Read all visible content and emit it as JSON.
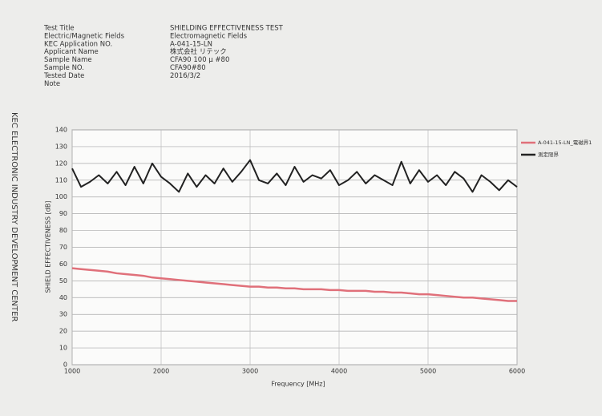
{
  "header": {
    "rows": [
      {
        "label": "Test Title",
        "value": "SHIELDING EFFECTIVENESS TEST"
      },
      {
        "label": "Electric/Magnetic Fields",
        "value": "Electromagnetic Fields"
      },
      {
        "label": "KEC Application NO.",
        "value": "A-041-15-LN"
      },
      {
        "label": "Applicant Name",
        "value": "株式会社 リテック"
      },
      {
        "label": "Sample Name",
        "value": "CFA90 100 μ #80"
      },
      {
        "label": "Sample NO.",
        "value": "CFA90#80"
      },
      {
        "label": "Tested Date",
        "value": "2016/3/2"
      },
      {
        "label": "Note"
      }
    ]
  },
  "side_text": "KEC ELECTRONIC INDUSTRY DEVELOPMENT CENTER",
  "chart_data": {
    "type": "line",
    "x_label": "Frequency [MHz]",
    "y_label": "SHIELD EFFECTIVENESS [dB]",
    "x": [
      1000,
      1100,
      1200,
      1300,
      1400,
      1500,
      1600,
      1700,
      1800,
      1900,
      2000,
      2100,
      2200,
      2300,
      2400,
      2500,
      2600,
      2700,
      2800,
      2900,
      3000,
      3100,
      3200,
      3300,
      3400,
      3500,
      3600,
      3700,
      3800,
      3900,
      4000,
      4100,
      4200,
      4300,
      4400,
      4500,
      4600,
      4700,
      4800,
      4900,
      5000,
      5100,
      5200,
      5300,
      5400,
      5500,
      5600,
      5700,
      5800,
      5900,
      6000
    ],
    "series": [
      {
        "name": "A-041-15-LN_電磁界1",
        "color": "#e0707a",
        "values": [
          57.5,
          57,
          56.5,
          56,
          55.5,
          54.5,
          54,
          53.5,
          53,
          52,
          51.5,
          51,
          50.5,
          50,
          49.5,
          49,
          48.5,
          48,
          47.5,
          47,
          46.5,
          46.5,
          46,
          46,
          45.5,
          45.5,
          45,
          45,
          45,
          44.5,
          44.5,
          44,
          44,
          44,
          43.5,
          43.5,
          43,
          43,
          42.5,
          42,
          42,
          41.5,
          41,
          40.5,
          40,
          40,
          39.5,
          39,
          38.5,
          38,
          38
        ]
      },
      {
        "name": "測定限界",
        "color": "#222222",
        "values": [
          117,
          106,
          109,
          113,
          108,
          115,
          107,
          118,
          108,
          120,
          112,
          108,
          103,
          114,
          106,
          113,
          108,
          117,
          109,
          115,
          122,
          110,
          108,
          114,
          107,
          118,
          109,
          113,
          111,
          116,
          107,
          110,
          115,
          108,
          113,
          110,
          107,
          121,
          108,
          116,
          109,
          113,
          107,
          115,
          111,
          103,
          113,
          109,
          104,
          110,
          106
        ]
      }
    ],
    "xlim": [
      1000,
      6000
    ],
    "xticks": [
      1000,
      2000,
      3000,
      4000,
      5000,
      6000
    ],
    "ylim": [
      0,
      140
    ],
    "yticks": [
      0,
      10,
      20,
      30,
      40,
      50,
      60,
      70,
      80,
      90,
      100,
      110,
      120,
      130,
      140
    ],
    "grid": true,
    "legend": "right"
  }
}
